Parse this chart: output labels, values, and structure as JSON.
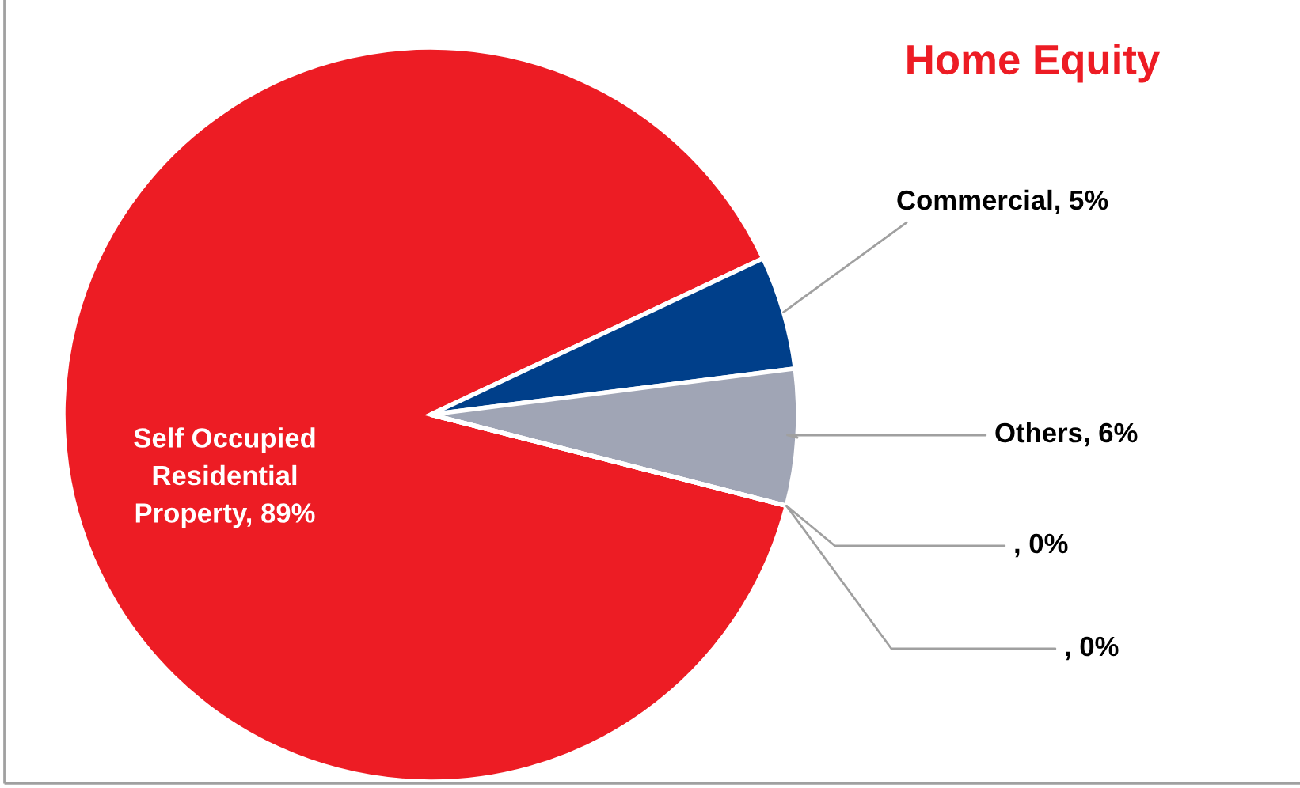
{
  "chart_data": {
    "type": "pie",
    "title": "Home Equity",
    "categories": [
      "Self Occupied\nResidential\nProperty, 89%",
      "Commercial, 5%",
      "Others, 6%",
      ", 0%",
      ", 0%"
    ],
    "values": [
      89,
      5,
      6,
      0,
      0
    ],
    "colors": [
      "#ed1c24",
      "#003f8a",
      "#a0a5b5",
      "#a0a5b5",
      "#a0a5b5"
    ],
    "legend": false
  }
}
